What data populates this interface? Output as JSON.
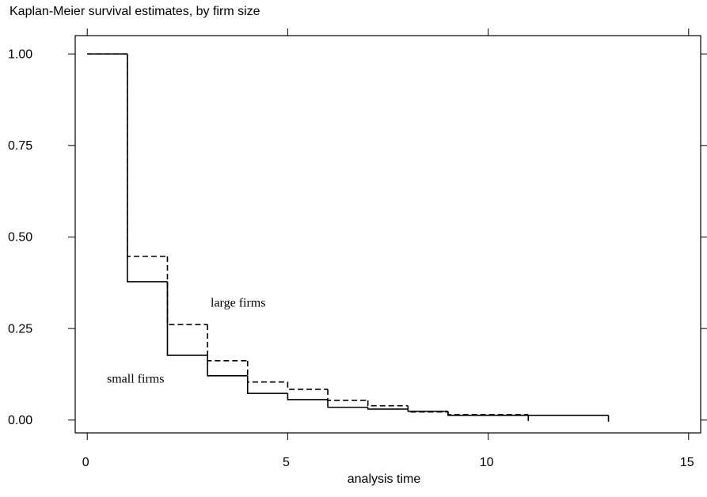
{
  "chart_data": {
    "type": "step",
    "title": "Kaplan-Meier survival estimates, by firm size",
    "xlabel": "analysis time",
    "series": [
      {
        "name": "small firms",
        "color": "#000000",
        "dash": "solid",
        "x": [
          0,
          1,
          2,
          3,
          4,
          5,
          6,
          7,
          8,
          9,
          13
        ],
        "values": [
          1.0,
          0.378,
          0.177,
          0.121,
          0.073,
          0.056,
          0.035,
          0.03,
          0.024,
          0.013,
          0.013
        ]
      },
      {
        "name": "large firms",
        "color": "#000000",
        "dash": "dashed",
        "x": [
          0,
          1,
          2,
          3,
          4,
          5,
          6,
          7,
          8,
          9,
          11
        ],
        "values": [
          1.0,
          0.447,
          0.261,
          0.162,
          0.104,
          0.084,
          0.054,
          0.039,
          0.022,
          0.015,
          0.015
        ]
      }
    ],
    "xlim": [
      -0.3,
      15.3
    ],
    "ylim": [
      -0.035,
      1.05
    ],
    "xticks": [
      0,
      5,
      10,
      15
    ],
    "yticks": [
      {
        "value": 0,
        "label": "0.00"
      },
      {
        "value": 0.25,
        "label": "0.25"
      },
      {
        "value": 0.5,
        "label": "0.50"
      },
      {
        "value": 0.75,
        "label": "0.75"
      },
      {
        "value": 1,
        "label": "1.00"
      }
    ]
  }
}
